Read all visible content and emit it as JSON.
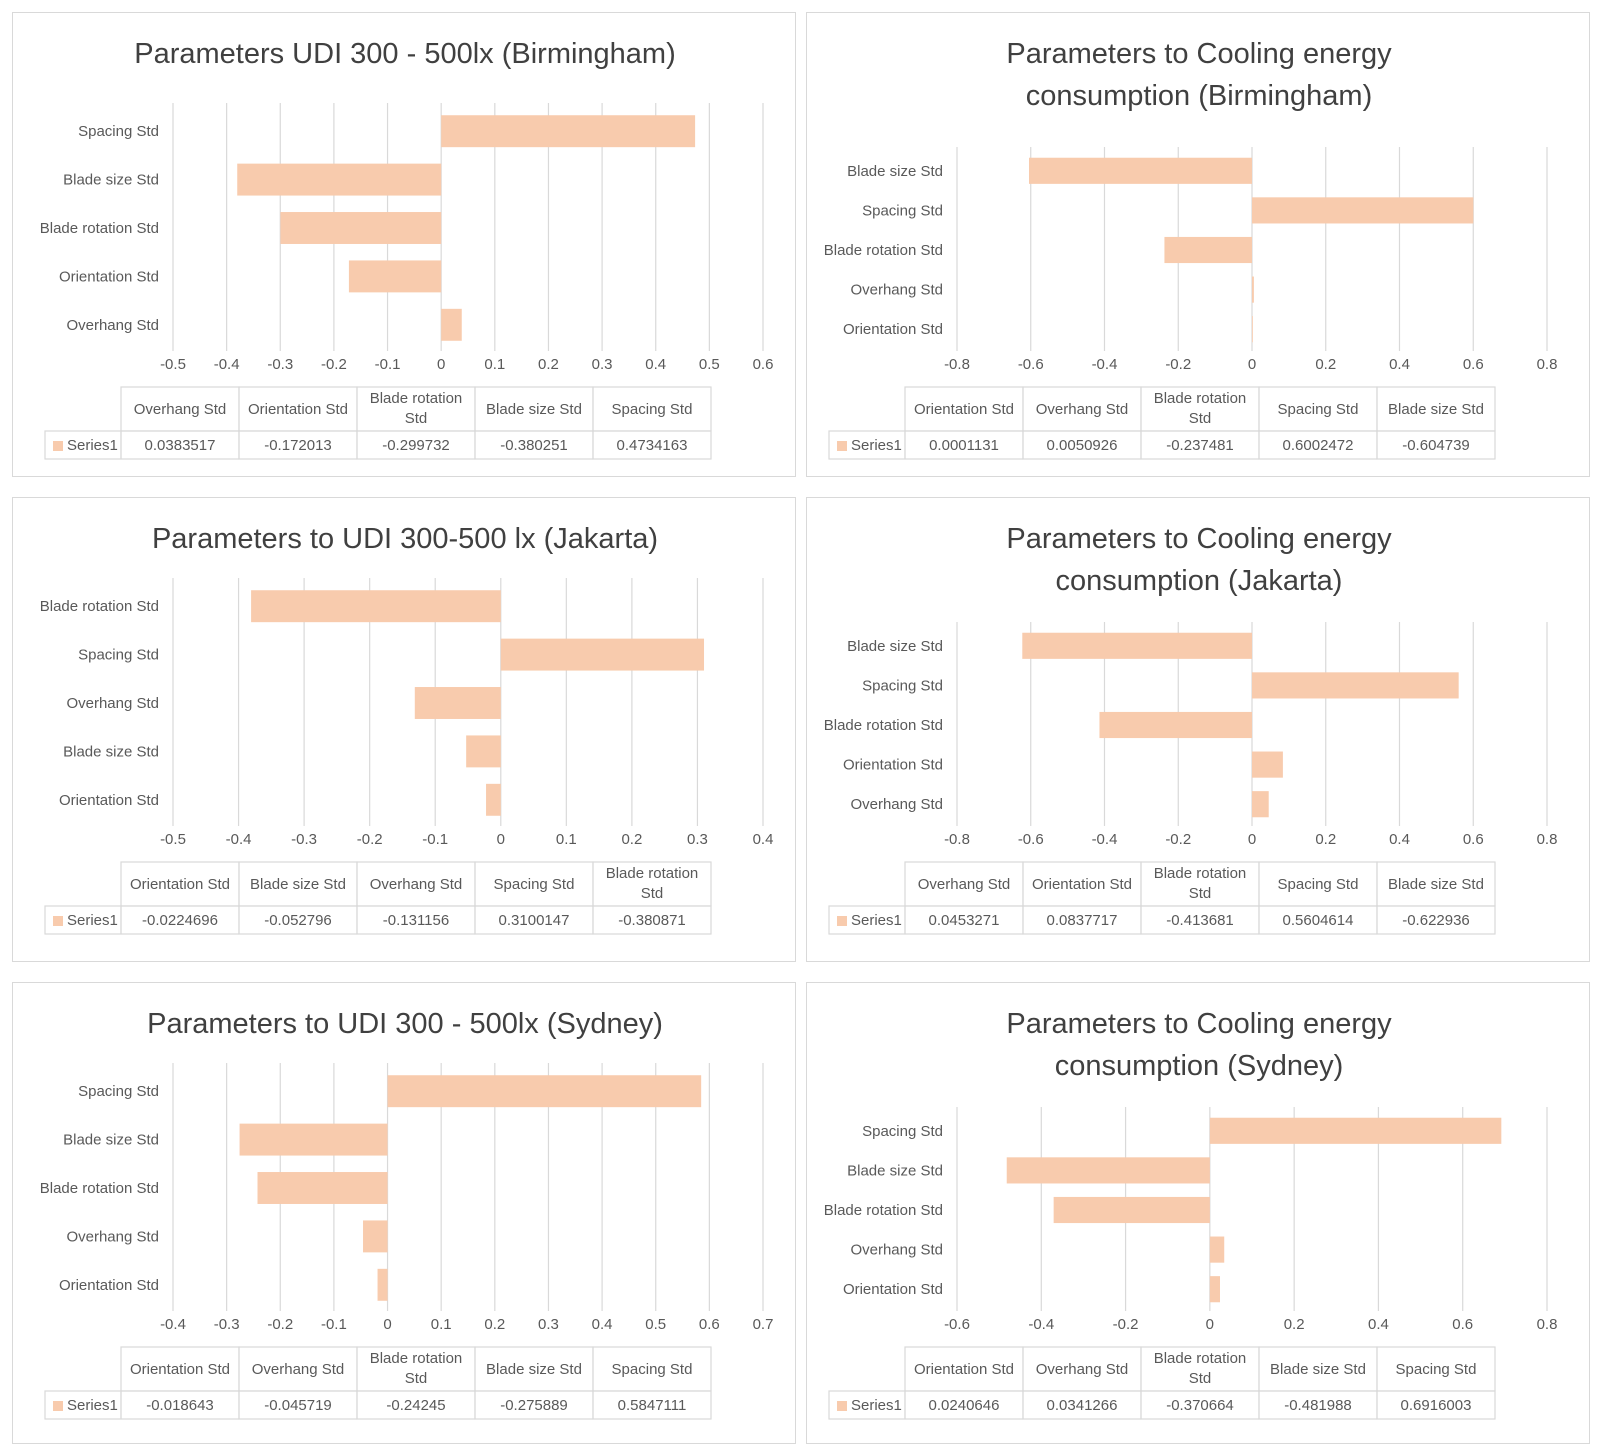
{
  "style": {
    "bar_color": "#f8cbad",
    "grid_color": "#d9d9d9",
    "text_color": "#595959",
    "title_color": "#404040",
    "border_color": "#d9d9d9"
  },
  "chart_data": [
    {
      "type": "bar",
      "orientation": "horizontal",
      "title": "Parameters UDI 300 - 500lx (Birmingham)",
      "title_lines": [
        "Parameters UDI 300 - 500lx (Birmingham)"
      ],
      "categories": [
        "Overhang Std",
        "Orientation Std",
        "Blade rotation Std",
        "Blade size Std",
        "Spacing Std"
      ],
      "category_header_lines": [
        [
          "Overhang Std"
        ],
        [
          "Orientation Std"
        ],
        [
          "Blade rotation",
          "Std"
        ],
        [
          "Blade size Std"
        ],
        [
          "Spacing Std"
        ]
      ],
      "series": [
        {
          "name": "Series1",
          "values": [
            0.0383517,
            -0.172013,
            -0.299732,
            -0.380251,
            0.4734163
          ]
        }
      ],
      "value_labels": [
        "0.0383517",
        "-0.172013",
        "-0.299732",
        "-0.380251",
        "0.4734163"
      ],
      "xlim": [
        -0.5,
        0.6
      ],
      "ticks": [
        "-0.5",
        "-0.4",
        "-0.3",
        "-0.2",
        "-0.1",
        "0",
        "0.1",
        "0.2",
        "0.3",
        "0.4",
        "0.5",
        "0.6"
      ],
      "grid": true,
      "data_table": true
    },
    {
      "type": "bar",
      "orientation": "horizontal",
      "title": "Parameters to Cooling energy consumption (Birmingham)",
      "title_lines": [
        "Parameters to Cooling energy",
        "consumption (Birmingham)"
      ],
      "categories": [
        "Orientation Std",
        "Overhang Std",
        "Blade rotation Std",
        "Spacing Std",
        "Blade size Std"
      ],
      "category_header_lines": [
        [
          "Orientation Std"
        ],
        [
          "Overhang Std"
        ],
        [
          "Blade rotation",
          "Std"
        ],
        [
          "Spacing Std"
        ],
        [
          "Blade size Std"
        ]
      ],
      "series": [
        {
          "name": "Series1",
          "values": [
            0.0001131,
            0.0050926,
            -0.237481,
            0.6002472,
            -0.604739
          ]
        }
      ],
      "value_labels": [
        "0.0001131",
        "0.0050926",
        "-0.237481",
        "0.6002472",
        "-0.604739"
      ],
      "xlim": [
        -0.8,
        0.8
      ],
      "ticks": [
        "-0.8",
        "-0.6",
        "-0.4",
        "-0.2",
        "0",
        "0.2",
        "0.4",
        "0.6",
        "0.8"
      ],
      "grid": true,
      "data_table": true
    },
    {
      "type": "bar",
      "orientation": "horizontal",
      "title": "Parameters to UDI 300-500 lx (Jakarta)",
      "title_lines": [
        "Parameters to UDI 300-500 lx (Jakarta)"
      ],
      "categories": [
        "Orientation Std",
        "Blade size Std",
        "Overhang Std",
        "Spacing Std",
        "Blade rotation Std"
      ],
      "category_header_lines": [
        [
          "Orientation Std"
        ],
        [
          "Blade size Std"
        ],
        [
          "Overhang Std"
        ],
        [
          "Spacing Std"
        ],
        [
          "Blade rotation",
          "Std"
        ]
      ],
      "series": [
        {
          "name": "Series1",
          "values": [
            -0.0224696,
            -0.052796,
            -0.131156,
            0.3100147,
            -0.380871
          ]
        }
      ],
      "value_labels": [
        "-0.0224696",
        "-0.052796",
        "-0.131156",
        "0.3100147",
        "-0.380871"
      ],
      "xlim": [
        -0.5,
        0.4
      ],
      "ticks": [
        "-0.5",
        "-0.4",
        "-0.3",
        "-0.2",
        "-0.1",
        "0",
        "0.1",
        "0.2",
        "0.3",
        "0.4"
      ],
      "grid": true,
      "data_table": true
    },
    {
      "type": "bar",
      "orientation": "horizontal",
      "title": "Parameters to Cooling energy consumption (Jakarta)",
      "title_lines": [
        "Parameters to Cooling energy",
        "consumption (Jakarta)"
      ],
      "categories": [
        "Overhang Std",
        "Orientation Std",
        "Blade rotation Std",
        "Spacing Std",
        "Blade size Std"
      ],
      "category_header_lines": [
        [
          "Overhang Std"
        ],
        [
          "Orientation Std"
        ],
        [
          "Blade rotation",
          "Std"
        ],
        [
          "Spacing Std"
        ],
        [
          "Blade size Std"
        ]
      ],
      "series": [
        {
          "name": "Series1",
          "values": [
            0.0453271,
            0.0837717,
            -0.413681,
            0.5604614,
            -0.622936
          ]
        }
      ],
      "value_labels": [
        "0.0453271",
        "0.0837717",
        "-0.413681",
        "0.5604614",
        "-0.622936"
      ],
      "xlim": [
        -0.8,
        0.8
      ],
      "ticks": [
        "-0.8",
        "-0.6",
        "-0.4",
        "-0.2",
        "0",
        "0.2",
        "0.4",
        "0.6",
        "0.8"
      ],
      "grid": true,
      "data_table": true
    },
    {
      "type": "bar",
      "orientation": "horizontal",
      "title": "Parameters to UDI 300 - 500lx (Sydney)",
      "title_lines": [
        "Parameters to UDI 300 - 500lx (Sydney)"
      ],
      "categories": [
        "Orientation Std",
        "Overhang Std",
        "Blade rotation Std",
        "Blade size Std",
        "Spacing Std"
      ],
      "category_header_lines": [
        [
          "Orientation Std"
        ],
        [
          "Overhang Std"
        ],
        [
          "Blade rotation",
          "Std"
        ],
        [
          "Blade size Std"
        ],
        [
          "Spacing Std"
        ]
      ],
      "series": [
        {
          "name": "Series1",
          "values": [
            -0.018643,
            -0.045719,
            -0.24245,
            -0.275889,
            0.5847111
          ]
        }
      ],
      "value_labels": [
        "-0.018643",
        "-0.045719",
        "-0.24245",
        "-0.275889",
        "0.5847111"
      ],
      "xlim": [
        -0.4,
        0.7
      ],
      "ticks": [
        "-0.4",
        "-0.3",
        "-0.2",
        "-0.1",
        "0",
        "0.1",
        "0.2",
        "0.3",
        "0.4",
        "0.5",
        "0.6",
        "0.7"
      ],
      "grid": true,
      "data_table": true
    },
    {
      "type": "bar",
      "orientation": "horizontal",
      "title": "Parameters to Cooling energy consumption (Sydney)",
      "title_lines": [
        "Parameters to Cooling energy",
        "consumption (Sydney)"
      ],
      "categories": [
        "Orientation Std",
        "Overhang Std",
        "Blade rotation Std",
        "Blade size Std",
        "Spacing Std"
      ],
      "category_header_lines": [
        [
          "Orientation Std"
        ],
        [
          "Overhang Std"
        ],
        [
          "Blade rotation",
          "Std"
        ],
        [
          "Blade size Std"
        ],
        [
          "Spacing Std"
        ]
      ],
      "series": [
        {
          "name": "Series1",
          "values": [
            0.0240646,
            0.0341266,
            -0.370664,
            -0.481988,
            0.6916003
          ]
        }
      ],
      "value_labels": [
        "0.0240646",
        "0.0341266",
        "-0.370664",
        "-0.481988",
        "0.6916003"
      ],
      "xlim": [
        -0.6,
        0.8
      ],
      "ticks": [
        "-0.6",
        "-0.4",
        "-0.2",
        "0",
        "0.2",
        "0.4",
        "0.6",
        "0.8"
      ],
      "grid": true,
      "data_table": true
    }
  ]
}
